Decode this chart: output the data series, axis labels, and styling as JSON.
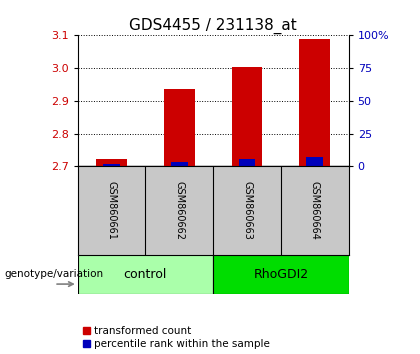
{
  "title": "GDS4455 / 231138_at",
  "samples": [
    "GSM860661",
    "GSM860662",
    "GSM860663",
    "GSM860664"
  ],
  "transformed_counts": [
    2.722,
    2.935,
    3.002,
    3.088
  ],
  "percentile_ranks": [
    2.0,
    3.5,
    6.0,
    7.5
  ],
  "ylim_left": [
    2.7,
    3.1
  ],
  "ylim_right": [
    0,
    100
  ],
  "yticks_left": [
    2.7,
    2.8,
    2.9,
    3.0,
    3.1
  ],
  "yticks_right": [
    0,
    25,
    50,
    75,
    100
  ],
  "ytick_labels_right": [
    "0",
    "25",
    "50",
    "75",
    "100%"
  ],
  "groups": [
    {
      "label": "control",
      "indices": [
        0,
        1
      ],
      "color": "#AAFFAA"
    },
    {
      "label": "RhoGDI2",
      "indices": [
        2,
        3
      ],
      "color": "#00DD00"
    }
  ],
  "bar_color_red": "#CC0000",
  "bar_color_blue": "#0000BB",
  "bar_width": 0.45,
  "blue_bar_width": 0.25,
  "bg_color": "#FFFFFF",
  "sample_box_color": "#C8C8C8",
  "left_axis_color": "#CC0000",
  "right_axis_color": "#0000BB",
  "title_fontsize": 11,
  "tick_fontsize": 8,
  "sample_fontsize": 7,
  "group_fontsize": 9,
  "genotype_label": "genotype/variation",
  "legend_red": "transformed count",
  "legend_blue": "percentile rank within the sample",
  "legend_fontsize": 7.5
}
